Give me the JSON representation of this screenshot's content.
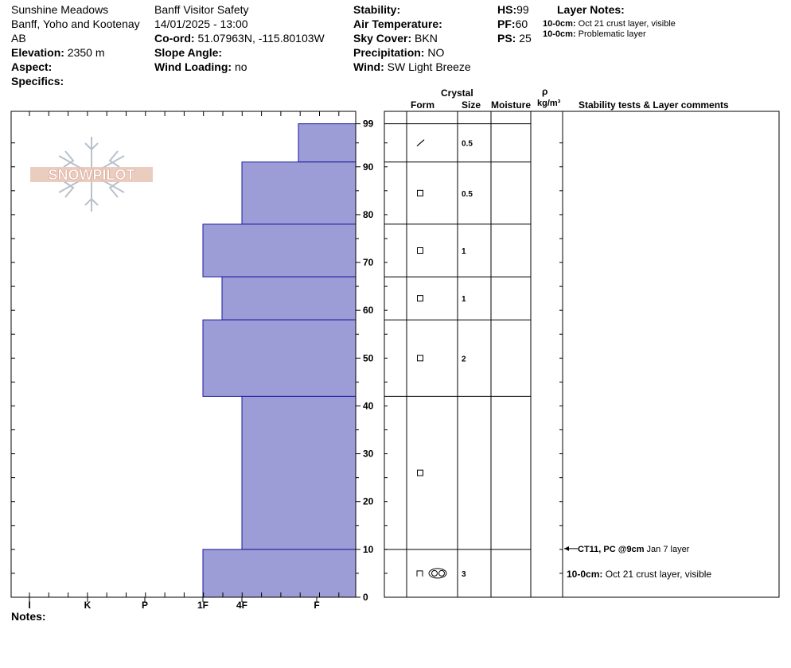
{
  "header": {
    "col1": {
      "location": "Sunshine Meadows",
      "region": "Banff, Yoho and Kootenay",
      "province": "AB",
      "elevation_label": "Elevation:",
      "elevation_value": "2350 m",
      "aspect_label": "Aspect:",
      "aspect_value": "",
      "specifics_label": "Specifics:",
      "specifics_value": ""
    },
    "col2": {
      "observer": "Banff  Visitor Safety",
      "datetime": "14/01/2025 - 13:00",
      "coord_label": "Co-ord:",
      "coord_value": "51.07963N, -115.80103W",
      "slope_label": "Slope Angle:",
      "slope_value": "",
      "wind_loading_label": "Wind Loading:",
      "wind_loading_value": "no"
    },
    "col3": {
      "stability_label": "Stability:",
      "stability_value": "",
      "air_temp_label": "Air Temperature:",
      "air_temp_value": "",
      "sky_label": "Sky Cover:",
      "sky_value": "BKN",
      "precip_label": "Precipitation:",
      "precip_value": "NO",
      "wind_label": "Wind:",
      "wind_value": "SW Light Breeze"
    },
    "col4": {
      "hs_label": "HS:",
      "hs_value": "99",
      "pf_label": "PF:",
      "pf_value": "60",
      "ps_label": "PS:",
      "ps_value": "25"
    },
    "layer_notes": {
      "title": "Layer Notes:",
      "items": [
        {
          "range": "10-0cm:",
          "text": "Oct 21 crust layer, visible"
        },
        {
          "range": "10-0cm:",
          "text": "Problematic layer"
        }
      ]
    }
  },
  "logo": {
    "text": "SNOWPILOT"
  },
  "table_headers": {
    "crystal": "Crystal",
    "form": "Form",
    "size": "Size",
    "moisture": "Moisture",
    "rho": "ρ",
    "density_unit": "kg/m³",
    "comments": "Stability tests & Layer comments"
  },
  "notes_label": "Notes:",
  "colors": {
    "bar_fill": "#9c9cd6",
    "bar_stroke": "#1a1aa0",
    "grid": "#000000",
    "logo": "#e8b8a8",
    "snowflake": "#b8c0cc"
  },
  "chart_data": {
    "type": "bar",
    "orientation": "horizontal",
    "ylabel": "",
    "xlabel": "",
    "ylim": [
      0,
      99
    ],
    "y_ticks": [
      0,
      10,
      20,
      30,
      40,
      50,
      60,
      70,
      80,
      90,
      99
    ],
    "hardness_scale": [
      "I",
      "K",
      "P",
      "1F",
      "4F",
      "F"
    ],
    "layers": [
      {
        "top": 99,
        "bottom": 91,
        "hardness": "F+",
        "form": "decomposing",
        "size": "0.5"
      },
      {
        "top": 91,
        "bottom": 78,
        "hardness": "4F",
        "form": "faceted",
        "size": "0.5"
      },
      {
        "top": 78,
        "bottom": 67,
        "hardness": "1F",
        "form": "faceted",
        "size": "1"
      },
      {
        "top": 67,
        "bottom": 58,
        "hardness": "1F-",
        "form": "faceted",
        "size": "1"
      },
      {
        "top": 58,
        "bottom": 42,
        "hardness": "1F",
        "form": "faceted",
        "size": "2"
      },
      {
        "top": 42,
        "bottom": 10,
        "hardness": "4F",
        "form": "faceted",
        "size": ""
      },
      {
        "top": 10,
        "bottom": 0,
        "hardness": "1F",
        "form": "depth hoar / melt-freeze",
        "size": "3"
      }
    ],
    "comments": [
      {
        "height": 9,
        "bold": "CT11, PC @9cm",
        "text": " Jan 7 layer",
        "arrow": true
      },
      {
        "height": 4,
        "bold": "10-0cm:",
        "text": " Oct 21 crust layer, visible",
        "arrow": false
      }
    ]
  }
}
